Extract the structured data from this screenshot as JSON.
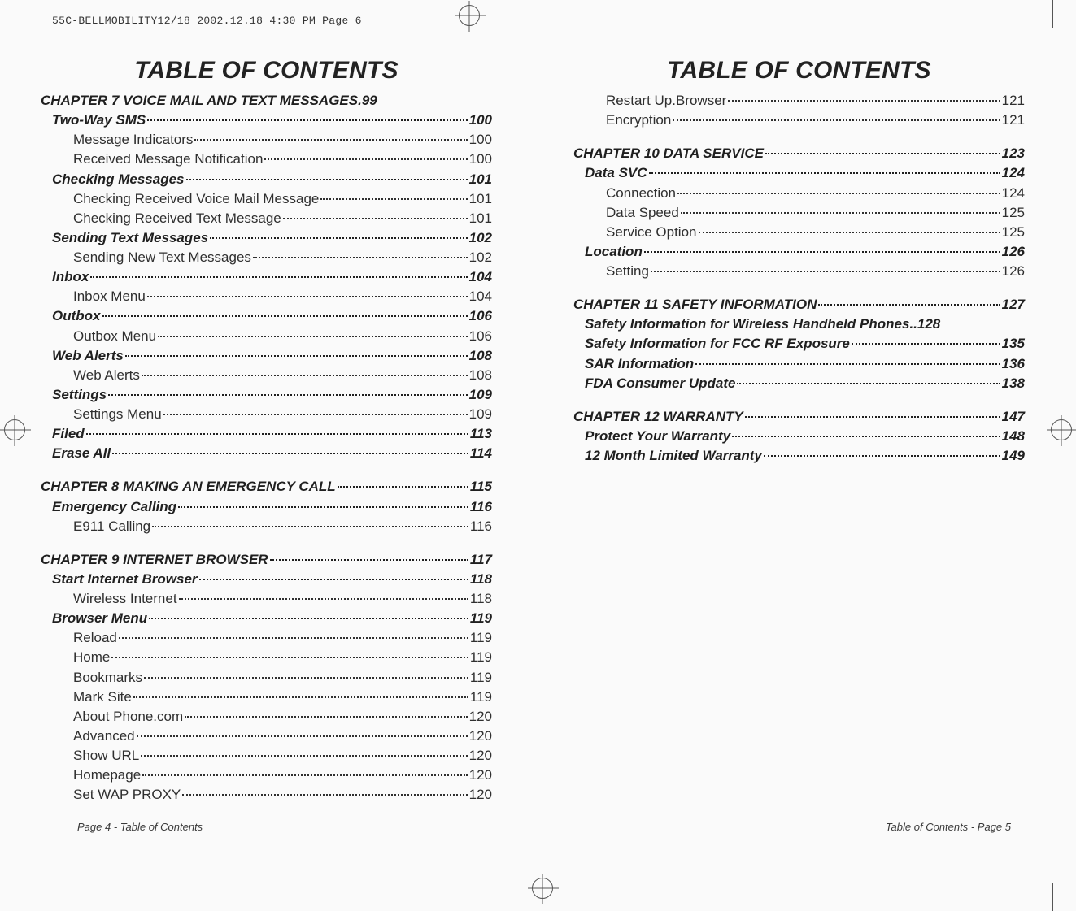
{
  "header_strip": "55C-BELLMOBILITY12/18  2002.12.18  4:30 PM  Page 6",
  "left_title": "TABLE OF CONTENTS",
  "right_title": "TABLE OF CONTENTS",
  "left_footer": "Page 4 - Table of Contents",
  "right_footer": "Table of Contents - Page 5",
  "left_items": [
    {
      "level": 0,
      "label": "CHAPTER 7 VOICE MAIL AND TEXT MESSAGES",
      "page": "99",
      "nodots": true,
      "nospace": true
    },
    {
      "level": 1,
      "label": "Two-Way SMS ",
      "page": "100"
    },
    {
      "level": 2,
      "label": "Message Indicators ",
      "page": "100"
    },
    {
      "level": 2,
      "label": "Received Message Notification",
      "page": "100"
    },
    {
      "level": 1,
      "label": "Checking Messages ",
      "page": "101"
    },
    {
      "level": 2,
      "label": "Checking Received Voice Mail Message ",
      "page": "101"
    },
    {
      "level": 2,
      "label": "Checking Received Text Message ",
      "page": "101"
    },
    {
      "level": 1,
      "label": "Sending Text Messages ",
      "page": "102"
    },
    {
      "level": 2,
      "label": "Sending New Text  Messages",
      "page": "102"
    },
    {
      "level": 1,
      "label": "Inbox ",
      "page": "104"
    },
    {
      "level": 2,
      "label": "Inbox Menu",
      "page": "104"
    },
    {
      "level": 1,
      "label": "Outbox ",
      "page": "106"
    },
    {
      "level": 2,
      "label": "Outbox  Menu",
      "page": "106"
    },
    {
      "level": 1,
      "label": "Web Alerts ",
      "page": "108"
    },
    {
      "level": 2,
      "label": "Web Alerts ",
      "page": "108"
    },
    {
      "level": 1,
      "label": "Settings",
      "page": "109"
    },
    {
      "level": 2,
      "label": "Settings Menu",
      "page": "109"
    },
    {
      "level": 1,
      "label": "Filed",
      "page": "113"
    },
    {
      "level": 1,
      "label": "Erase All",
      "page": "114"
    },
    {
      "level": 0,
      "label": "CHAPTER 8 MAKING AN EMERGENCY CALL",
      "page": "115",
      "gap": true
    },
    {
      "level": 1,
      "label": "Emergency Calling",
      "page": "116"
    },
    {
      "level": 2,
      "label": "E911 Calling",
      "page": "116"
    },
    {
      "level": 0,
      "label": "CHAPTER 9 INTERNET BROWSER",
      "page": "117",
      "gap": true
    },
    {
      "level": 1,
      "label": "Start Internet Browser",
      "page": "118"
    },
    {
      "level": 2,
      "label": "Wireless  Internet",
      "page": "118"
    },
    {
      "level": 1,
      "label": "Browser  Menu",
      "page": "119"
    },
    {
      "level": 2,
      "label": "Reload",
      "page": "119"
    },
    {
      "level": 2,
      "label": "Home ",
      "page": "119"
    },
    {
      "level": 2,
      "label": "Bookmarks",
      "page": "119"
    },
    {
      "level": 2,
      "label": "Mark Site",
      "page": "119"
    },
    {
      "level": 2,
      "label": "About  Phone.com",
      "page": "120"
    },
    {
      "level": 2,
      "label": "Advanced",
      "page": "120"
    },
    {
      "level": 2,
      "label": "Show URL ",
      "page": "120"
    },
    {
      "level": 2,
      "label": "Homepage",
      "page": "120"
    },
    {
      "level": 2,
      "label": "Set WAP PROXY",
      "page": "120"
    }
  ],
  "right_items": [
    {
      "level": 2,
      "label": "Restart  Up.Browser",
      "page": "121"
    },
    {
      "level": 2,
      "label": "Encryption",
      "page": "121"
    },
    {
      "level": 0,
      "label": "CHAPTER 10 DATA SERVICE ",
      "page": "123",
      "gap": true
    },
    {
      "level": 1,
      "label": "Data SVC",
      "page": "124"
    },
    {
      "level": 2,
      "label": "Connection",
      "page": "124"
    },
    {
      "level": 2,
      "label": "Data Speed",
      "page": "125"
    },
    {
      "level": 2,
      "label": "Service Option",
      "page": "125"
    },
    {
      "level": 1,
      "label": "Location",
      "page": "126"
    },
    {
      "level": 2,
      "label": "Setting",
      "page": "126"
    },
    {
      "level": 0,
      "label": "CHAPTER 11 SAFETY INFORMATION ",
      "page": "127",
      "gap": true
    },
    {
      "level": 1,
      "label": "Safety Information for Wireless Handheld Phones",
      "page": "128",
      "nodots": true
    },
    {
      "level": 1,
      "label": "Safety Information for FCC RF Exposure",
      "page": "135"
    },
    {
      "level": 1,
      "label": "SAR Information",
      "page": "136"
    },
    {
      "level": 1,
      "label": "FDA Consumer Update ",
      "page": "138"
    },
    {
      "level": 0,
      "label": "CHAPTER 12  WARRANTY",
      "page": "147",
      "gap": true
    },
    {
      "level": 1,
      "label": "Protect Your Warranty",
      "page": "148"
    },
    {
      "level": 1,
      "label": "12 Month Limited Warranty ",
      "page": "149"
    }
  ]
}
